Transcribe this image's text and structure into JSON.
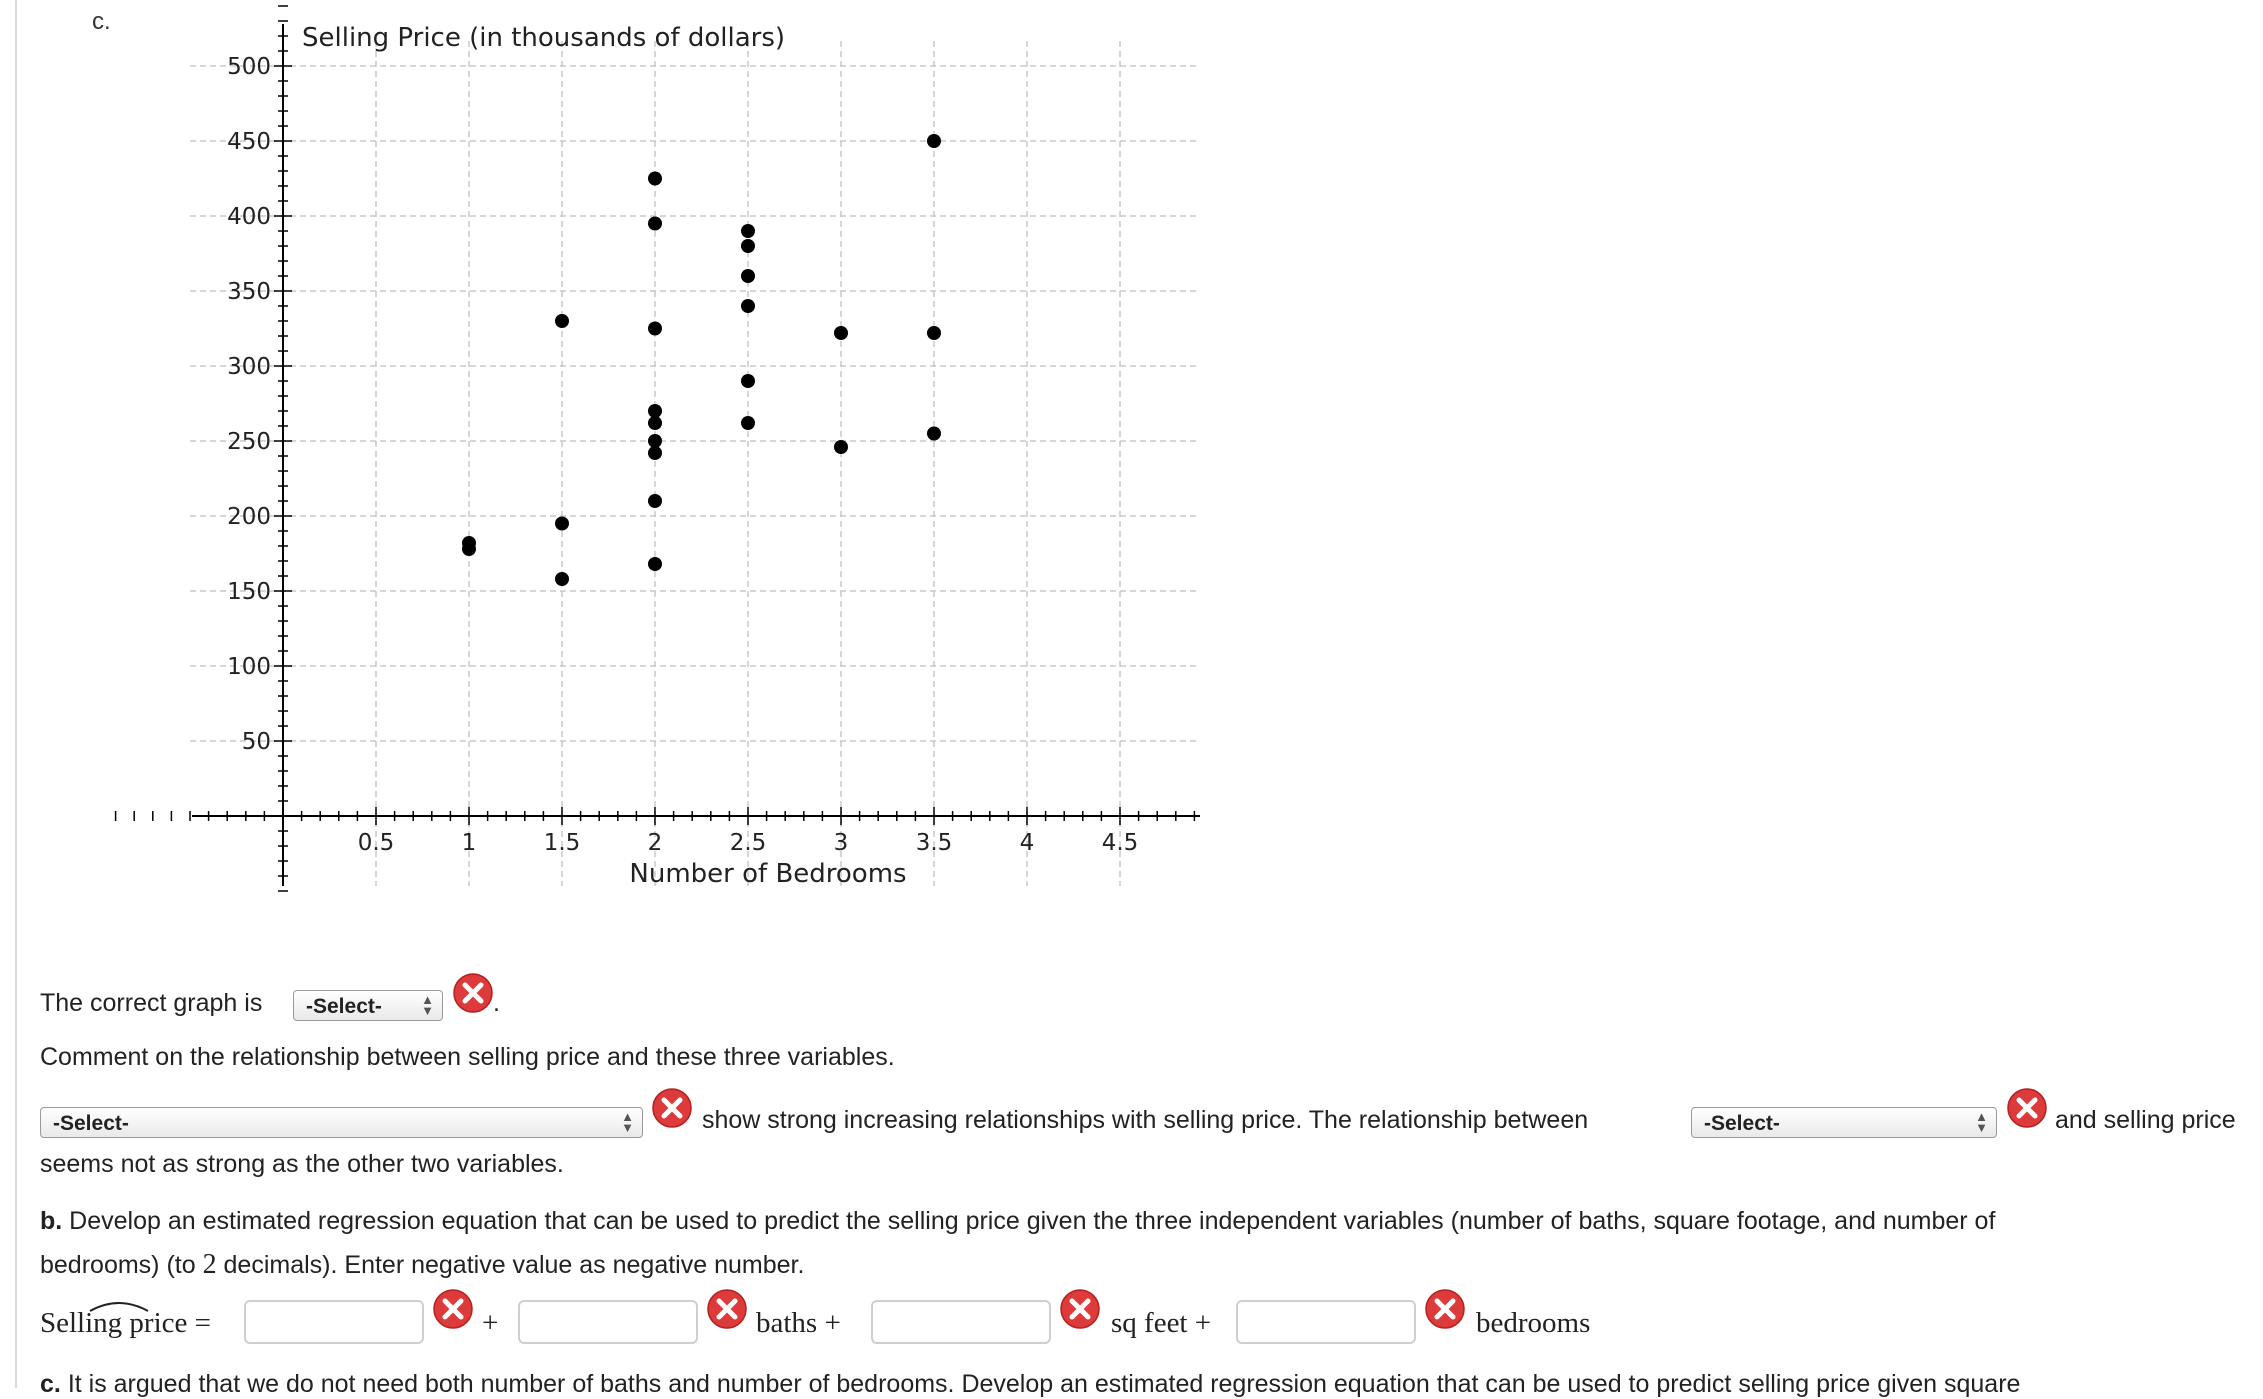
{
  "part_label": "c.",
  "colors": {
    "error_icon": "#dd3b3b",
    "grid": "#c8c8c8",
    "point": "#000000"
  },
  "chart_data": {
    "type": "scatter",
    "title": "",
    "xlabel": "Number of Bedrooms",
    "ylabel": "Selling Price (in thousands of dollars)",
    "xlim": [
      0,
      5
    ],
    "ylim": [
      0,
      500
    ],
    "x_ticks": [
      "0.5",
      "1",
      "1.5",
      "2",
      "2.5",
      "3",
      "3.5",
      "4",
      "4.5"
    ],
    "y_ticks": [
      "50",
      "100",
      "150",
      "200",
      "250",
      "300",
      "350",
      "400",
      "450",
      "500"
    ],
    "grid": true,
    "points": [
      {
        "x": 1,
        "y": 178
      },
      {
        "x": 1,
        "y": 182
      },
      {
        "x": 1.5,
        "y": 330
      },
      {
        "x": 1.5,
        "y": 195
      },
      {
        "x": 1.5,
        "y": 158
      },
      {
        "x": 2,
        "y": 425
      },
      {
        "x": 2,
        "y": 395
      },
      {
        "x": 2,
        "y": 325
      },
      {
        "x": 2,
        "y": 270
      },
      {
        "x": 2,
        "y": 262
      },
      {
        "x": 2,
        "y": 250
      },
      {
        "x": 2,
        "y": 242
      },
      {
        "x": 2,
        "y": 210
      },
      {
        "x": 2,
        "y": 168
      },
      {
        "x": 2.5,
        "y": 390
      },
      {
        "x": 2.5,
        "y": 380
      },
      {
        "x": 2.5,
        "y": 360
      },
      {
        "x": 2.5,
        "y": 340
      },
      {
        "x": 2.5,
        "y": 290
      },
      {
        "x": 2.5,
        "y": 262
      },
      {
        "x": 3,
        "y": 322
      },
      {
        "x": 3,
        "y": 246
      },
      {
        "x": 3.5,
        "y": 450
      },
      {
        "x": 3.5,
        "y": 322
      },
      {
        "x": 3.5,
        "y": 255
      }
    ]
  },
  "graph_question": {
    "prefix": "The correct graph is",
    "select_value": "-Select-",
    "suffix": "."
  },
  "comment_prompt": "Comment on the relationship between selling price and these three variables.",
  "relationship": {
    "select1_value": "-Select-",
    "text_middle": "show strong increasing relationships with selling price. The relationship between",
    "select2_value": "-Select-",
    "text_end": "and selling price",
    "text_line2": "seems not as strong as the other two variables."
  },
  "part_b": {
    "label": "b.",
    "text_1": "Develop an estimated regression equation that can be used to predict the selling price given the three independent variables (number of baths, square footage, and number of",
    "text_2a": "bedrooms) (to",
    "decimals": "2",
    "text_2b": "decimals). Enter negative value as negative number."
  },
  "equation": {
    "lhs": "Selling price",
    "equals": "=",
    "plus": "+",
    "baths": "baths +",
    "sqfeet": "sq feet +",
    "bedrooms": "bedrooms"
  },
  "part_c": {
    "label": "c.",
    "text": "It is argued that we do not need both number of baths and number of bedrooms. Develop an estimated regression equation that can be used to predict selling price given square"
  }
}
